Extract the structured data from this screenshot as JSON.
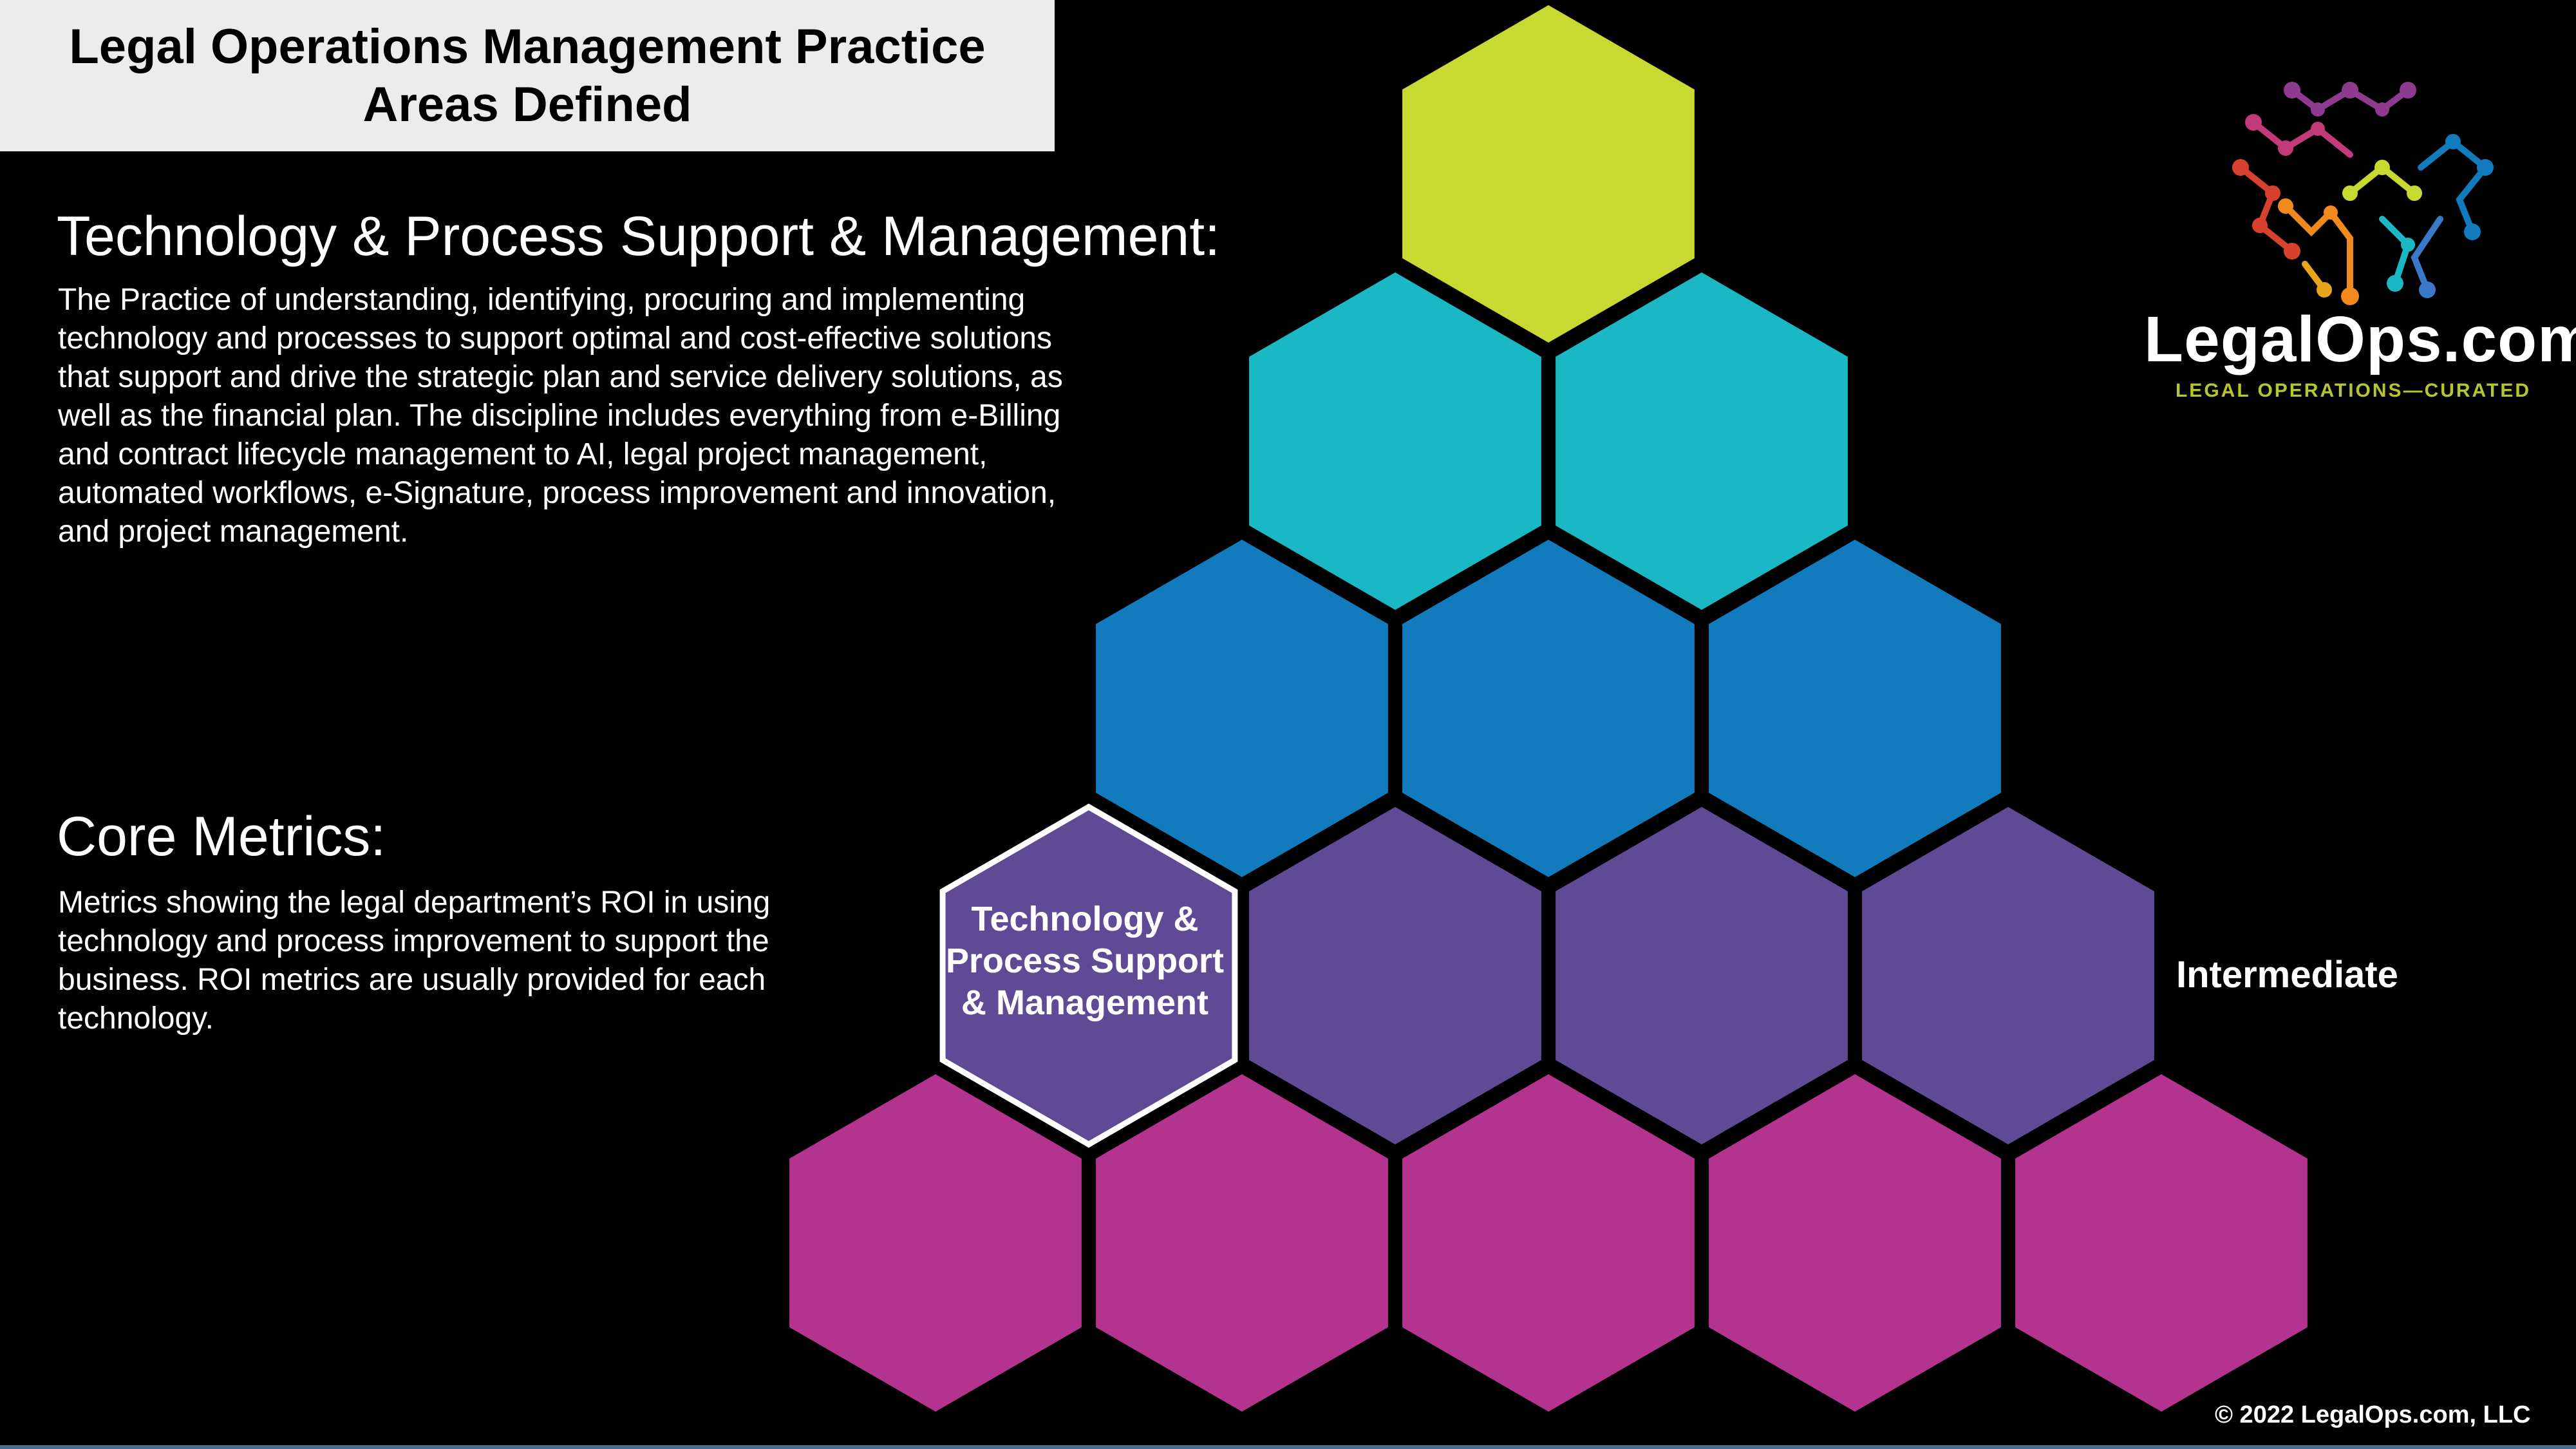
{
  "slide": {
    "title": "Legal Operations Management Practice Areas Defined"
  },
  "tech_section": {
    "heading": "Technology & Process Support & Management:",
    "description": "The Practice of understanding, identifying, procuring and implementing technology and processes to support optimal and cost-effective solutions that support and drive the strategic plan and service delivery solutions, as well as the financial plan.  The discipline includes everything from e-Billing and contract lifecycle management to AI, legal project management, automated workflows, e-Signature, process improvement and innovation, and project management."
  },
  "metrics_section": {
    "heading": "Core Metrics:",
    "description": "Metrics showing the legal department’s ROI in using technology and process improvement to support the business.  ROI metrics are usually provided for each technology."
  },
  "pyramid": {
    "row_colors": [
      "#c8d932",
      "#1ab8c4",
      "#127bbd",
      "#5f4a96",
      "#b4338f"
    ],
    "highlighted_label": "Technology & Process Support & Management",
    "level_label": "Intermediate"
  },
  "logo": {
    "wordmark": "LegalOps.com",
    "tagline": "LEGAL OPERATIONS—CURATED"
  },
  "footer": {
    "copyright": "© 2022 LegalOps.com, LLC"
  }
}
